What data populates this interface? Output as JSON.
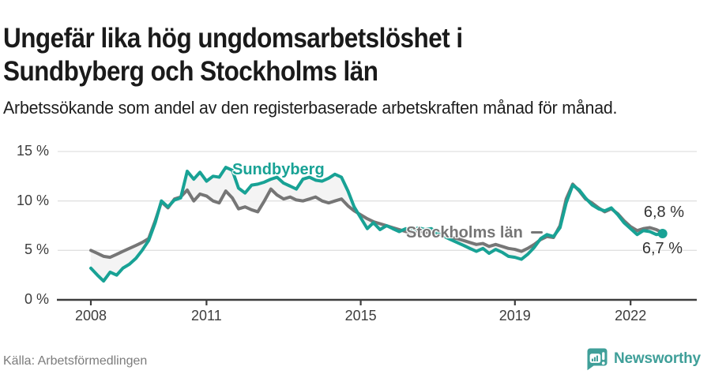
{
  "header": {
    "title": "Ungefär lika hög ungdomsarbetslöshet i Sundbyberg och Stockholms län",
    "subtitle": "Arbetssökande som andel av den registerbaserade arbetskraften månad för månad."
  },
  "footer": {
    "source": "Källa: Arbetsförmedlingen",
    "brand": "Newsworthy",
    "brand_icon": "newsworthy-speech-bubble-bar-chart-icon"
  },
  "colors": {
    "sundbyberg_teal": "#18a295",
    "stockholm_gray": "#767676",
    "between_fill": "#f2f2f2",
    "gridline": "#e0e0e0",
    "axis": "#3d3d3d",
    "title_text": "#1a1a1a",
    "tick_text": "#3d3d3d",
    "end_label_text": "#333333",
    "source_text": "#7c7c7c",
    "brand_teal": "#3f9f99"
  },
  "chart_data": {
    "type": "line",
    "title": "",
    "xlabel": "",
    "ylabel": "",
    "ylim": [
      0,
      15
    ],
    "grid": "horizontal",
    "legend_position": "inline-labels",
    "y_ticks": [
      0,
      5,
      10,
      15
    ],
    "y_tick_labels": [
      "0 %",
      "5 %",
      "10 %",
      "15 %"
    ],
    "x_ticks": [
      2008,
      2011,
      2015,
      2019,
      2022
    ],
    "x_tick_labels": [
      "2008",
      "2011",
      "2015",
      "2019",
      "2022"
    ],
    "x": [
      2008.0,
      2008.17,
      2008.33,
      2008.5,
      2008.67,
      2008.83,
      2009.0,
      2009.17,
      2009.33,
      2009.5,
      2009.67,
      2009.83,
      2010.0,
      2010.17,
      2010.33,
      2010.5,
      2010.67,
      2010.83,
      2011.0,
      2011.17,
      2011.33,
      2011.5,
      2011.67,
      2011.83,
      2012.0,
      2012.17,
      2012.33,
      2012.5,
      2012.67,
      2012.83,
      2013.0,
      2013.17,
      2013.33,
      2013.5,
      2013.67,
      2013.83,
      2014.0,
      2014.17,
      2014.33,
      2014.5,
      2014.67,
      2014.83,
      2015.0,
      2015.17,
      2015.33,
      2015.5,
      2015.67,
      2015.83,
      2016.0,
      2016.17,
      2016.33,
      2016.5,
      2016.67,
      2016.83,
      2017.0,
      2017.17,
      2017.33,
      2017.5,
      2017.67,
      2017.83,
      2018.0,
      2018.17,
      2018.33,
      2018.5,
      2018.67,
      2018.83,
      2019.0,
      2019.17,
      2019.33,
      2019.5,
      2019.67,
      2019.83,
      2020.0,
      2020.17,
      2020.33,
      2020.5,
      2020.67,
      2020.83,
      2021.0,
      2021.17,
      2021.33,
      2021.5,
      2021.67,
      2021.83,
      2022.0,
      2022.17,
      2022.33,
      2022.5,
      2022.67,
      2022.83
    ],
    "series": [
      {
        "name": "Sundbyberg",
        "color": "#18a295",
        "end_label": "6,7 %",
        "end_value": 6.7,
        "values": [
          3.2,
          2.5,
          1.9,
          2.8,
          2.5,
          3.2,
          3.6,
          4.2,
          5.0,
          6.0,
          7.8,
          10.0,
          9.4,
          10.1,
          10.3,
          13.0,
          12.2,
          12.9,
          12.0,
          12.5,
          12.4,
          13.4,
          13.1,
          11.3,
          10.8,
          11.6,
          11.7,
          11.9,
          12.2,
          12.4,
          11.8,
          11.5,
          11.2,
          12.2,
          12.4,
          12.1,
          12.0,
          12.3,
          12.7,
          12.4,
          11.0,
          9.4,
          8.3,
          7.2,
          7.8,
          7.1,
          7.5,
          7.2,
          6.9,
          7.2,
          7.0,
          7.3,
          7.1,
          7.2,
          6.7,
          6.4,
          6.1,
          5.8,
          5.5,
          5.2,
          4.9,
          5.2,
          4.7,
          5.1,
          4.8,
          4.4,
          4.3,
          4.1,
          4.6,
          5.3,
          6.2,
          6.6,
          6.4,
          7.3,
          9.8,
          11.6,
          11.1,
          10.3,
          9.6,
          9.2,
          9.0,
          9.3,
          8.6,
          7.8,
          7.2,
          6.6,
          7.0,
          6.9,
          6.6,
          6.7
        ]
      },
      {
        "name": "Stockholms län",
        "color": "#767676",
        "end_label": "6,8 %",
        "end_value": 6.8,
        "values": [
          5.0,
          4.7,
          4.4,
          4.3,
          4.6,
          4.9,
          5.2,
          5.5,
          5.8,
          6.2,
          8.0,
          9.9,
          9.3,
          10.2,
          10.4,
          11.1,
          10.0,
          10.7,
          10.5,
          10.0,
          9.8,
          11.0,
          10.3,
          9.2,
          9.4,
          9.1,
          8.9,
          10.0,
          11.2,
          10.6,
          10.2,
          10.4,
          10.1,
          10.0,
          10.2,
          10.4,
          10.0,
          9.8,
          10.0,
          10.2,
          9.5,
          9.0,
          8.6,
          8.2,
          7.9,
          7.7,
          7.5,
          7.3,
          7.1,
          6.9,
          6.8,
          7.0,
          6.8,
          6.9,
          6.7,
          6.5,
          6.3,
          6.2,
          6.0,
          5.8,
          5.6,
          5.7,
          5.4,
          5.6,
          5.4,
          5.2,
          5.1,
          4.9,
          5.2,
          5.6,
          6.1,
          6.4,
          6.3,
          7.5,
          10.2,
          11.7,
          11.0,
          10.2,
          9.8,
          9.3,
          8.9,
          9.2,
          8.7,
          8.0,
          7.4,
          7.0,
          7.2,
          7.3,
          7.1,
          6.8
        ]
      }
    ],
    "area_between_series": true,
    "end_marker_series": "Sundbyberg"
  }
}
